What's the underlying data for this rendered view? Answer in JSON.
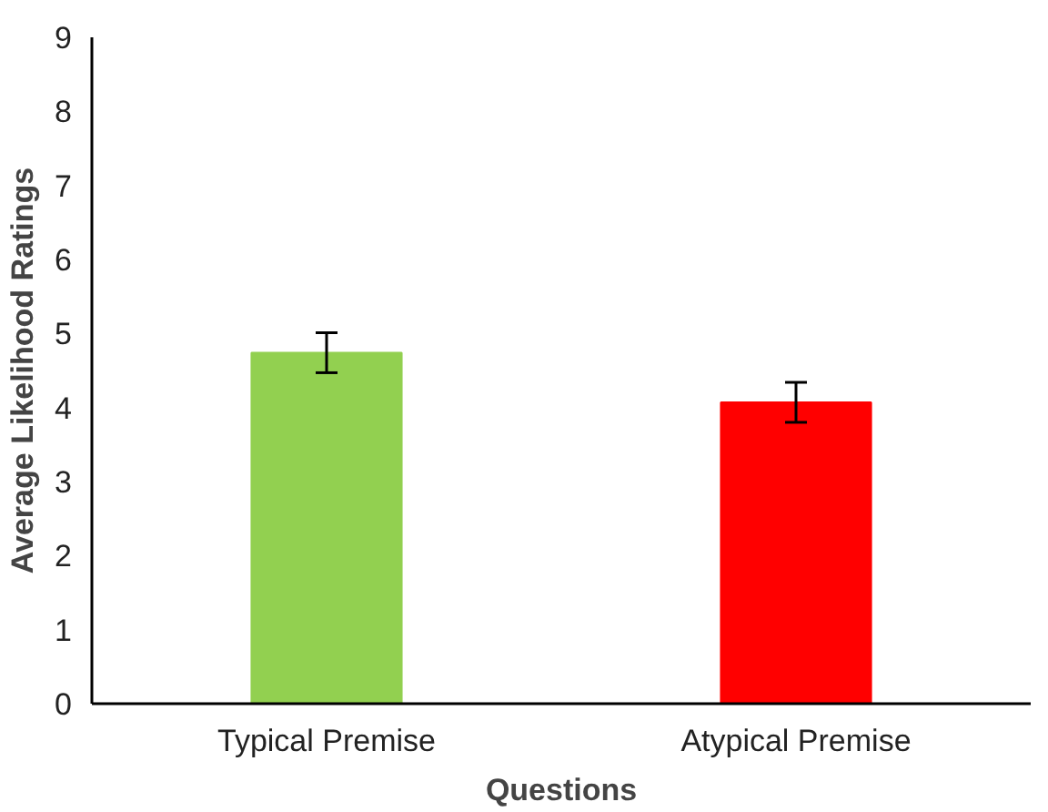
{
  "chart_data": {
    "type": "bar",
    "xlabel": "Questions",
    "ylabel": "Average Likelihood Ratings",
    "categories": [
      "Typical Premise",
      "Atypical Premise"
    ],
    "values": [
      4.74,
      4.07
    ],
    "colors": [
      "#92d050",
      "#ff0000"
    ],
    "errors": [
      0.27,
      0.27
    ],
    "ylim": [
      0,
      9
    ],
    "yticks": [
      0,
      1,
      2,
      3,
      4,
      5,
      6,
      7,
      8,
      9
    ],
    "grid": false
  }
}
